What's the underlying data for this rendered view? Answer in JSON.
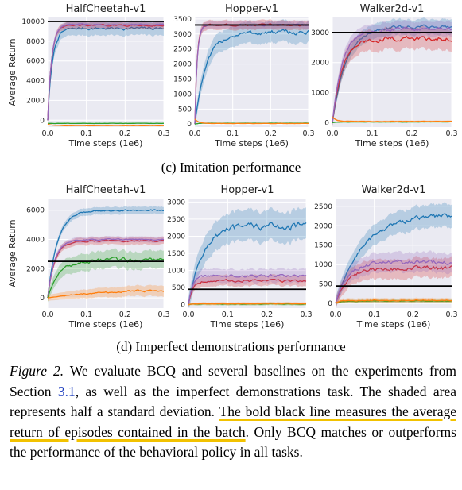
{
  "x_axis_label": "Time steps (1e6)",
  "y_axis_label": "Average Return",
  "x_ticks": [
    0.0,
    0.1,
    0.2,
    0.3
  ],
  "series_colors": {
    "bcq": "#1f77b4",
    "dqn": "#ff7f0e",
    "bc": "#2ca02c",
    "ddpg": "#d62728",
    "vae_bc": "#9467bd",
    "behavioral": "#000000"
  },
  "sections": [
    {
      "caption": "(c) Imitation performance"
    },
    {
      "caption": "(d) Imperfect demonstrations performance"
    }
  ],
  "figure_caption": {
    "label": "Figure 2.",
    "part1": " We evaluate BCQ and several baselines on the experiments from Section ",
    "ref": "3.1",
    "part2": ", as well as the imperfect demonstrations task. The shaded area represents half a standard deviation. ",
    "highlight": "The bold black line measures the average return of episodes contained in the batch",
    "part3": ". Only BCQ matches or outperforms the performance of the behavioral policy in all tasks."
  },
  "chart_data": [
    {
      "type": "line",
      "section": 0,
      "title": "HalfCheetah-v1",
      "xlabel": "Time steps (1e6)",
      "ylabel": "Average Return",
      "xlim": [
        0,
        0.3
      ],
      "ylim": [
        -700,
        10400
      ],
      "yticks": [
        0,
        2000,
        4000,
        6000,
        8000,
        10000
      ],
      "behavioral_return": 10000,
      "series": [
        {
          "key": "bcq",
          "final": 9300,
          "std": 700,
          "rise": 0.012
        },
        {
          "key": "ddpg",
          "final": 9600,
          "std": 350,
          "rise": 0.01
        },
        {
          "key": "vae_bc",
          "final": 9700,
          "std": 300,
          "rise": 0.01
        },
        {
          "key": "bc",
          "final": -320,
          "std": 60,
          "rise": 0.01
        },
        {
          "key": "dqn",
          "final": -550,
          "std": 60,
          "rise": 0.01
        }
      ]
    },
    {
      "type": "line",
      "section": 0,
      "title": "Hopper-v1",
      "xlabel": "Time steps (1e6)",
      "ylabel": "",
      "xlim": [
        0,
        0.3
      ],
      "ylim": [
        -100,
        3550
      ],
      "yticks": [
        0,
        500,
        1000,
        1500,
        2000,
        2500,
        3000,
        3500
      ],
      "behavioral_return": 3300,
      "series": [
        {
          "key": "bcq",
          "final": 3050,
          "std": 350,
          "rise": 0.03
        },
        {
          "key": "ddpg",
          "final": 3300,
          "std": 150,
          "rise": 0.006
        },
        {
          "key": "vae_bc",
          "final": 3300,
          "std": 120,
          "rise": 0.006
        },
        {
          "key": "bc",
          "final": 30,
          "std": 20,
          "rise": 0.01
        },
        {
          "key": "dqn",
          "final": 20,
          "std": 15,
          "rise": 0.01
        }
      ]
    },
    {
      "type": "line",
      "section": 0,
      "title": "Walker2d-v1",
      "xlabel": "Time steps (1e6)",
      "ylabel": "",
      "xlim": [
        0,
        0.3
      ],
      "ylim": [
        -150,
        3500
      ],
      "yticks": [
        0,
        1000,
        2000,
        3000
      ],
      "behavioral_return": 3000,
      "series": [
        {
          "key": "bcq",
          "final": 3200,
          "std": 250,
          "rise": 0.035
        },
        {
          "key": "ddpg",
          "final": 2800,
          "std": 350,
          "rise": 0.025
        },
        {
          "key": "vae_bc",
          "final": 3100,
          "std": 250,
          "rise": 0.025
        },
        {
          "key": "bc",
          "final": 20,
          "std": 20,
          "rise": 0.01
        },
        {
          "key": "dqn",
          "final": 40,
          "std": 30,
          "rise": 0.01
        }
      ]
    },
    {
      "type": "line",
      "section": 1,
      "title": "HalfCheetah-v1",
      "xlabel": "Time steps (1e6)",
      "ylabel": "Average Return",
      "xlim": [
        0,
        0.3
      ],
      "ylim": [
        -700,
        6800
      ],
      "yticks": [
        0,
        2000,
        4000,
        6000
      ],
      "behavioral_return": 2500,
      "series": [
        {
          "key": "bcq",
          "final": 6000,
          "std": 250,
          "rise": 0.025
        },
        {
          "key": "ddpg",
          "final": 3900,
          "std": 250,
          "rise": 0.018
        },
        {
          "key": "vae_bc",
          "final": 4000,
          "std": 200,
          "rise": 0.018
        },
        {
          "key": "bc",
          "final": 2600,
          "std": 600,
          "rise": 0.03
        },
        {
          "key": "dqn",
          "final": 600,
          "std": 400,
          "rise": 0.15
        }
      ]
    },
    {
      "type": "line",
      "section": 1,
      "title": "Hopper-v1",
      "xlabel": "Time steps (1e6)",
      "ylabel": "",
      "xlim": [
        0,
        0.3
      ],
      "ylim": [
        -100,
        3100
      ],
      "yticks": [
        0,
        500,
        1000,
        1500,
        2000,
        2500,
        3000
      ],
      "behavioral_return": 450,
      "series": [
        {
          "key": "bcq",
          "final": 2300,
          "std": 450,
          "rise": 0.035
        },
        {
          "key": "ddpg",
          "final": 700,
          "std": 150,
          "rise": 0.01
        },
        {
          "key": "vae_bc",
          "final": 850,
          "std": 200,
          "rise": 0.01
        },
        {
          "key": "bc",
          "final": 20,
          "std": 40,
          "rise": 0.01
        },
        {
          "key": "dqn",
          "final": 30,
          "std": 40,
          "rise": 0.01
        }
      ]
    },
    {
      "type": "line",
      "section": 1,
      "title": "Walker2d-v1",
      "xlabel": "Time steps (1e6)",
      "ylabel": "",
      "xlim": [
        0,
        0.3
      ],
      "ylim": [
        -120,
        2700
      ],
      "yticks": [
        0,
        500,
        1000,
        1500,
        2000,
        2500
      ],
      "behavioral_return": 450,
      "series": [
        {
          "key": "bcq",
          "final": 2300,
          "std": 300,
          "rise": 0.07
        },
        {
          "key": "ddpg",
          "final": 900,
          "std": 250,
          "rise": 0.03
        },
        {
          "key": "vae_bc",
          "final": 1050,
          "std": 250,
          "rise": 0.03
        },
        {
          "key": "bc",
          "final": 60,
          "std": 40,
          "rise": 0.01
        },
        {
          "key": "dqn",
          "final": 80,
          "std": 60,
          "rise": 0.01
        }
      ]
    }
  ]
}
